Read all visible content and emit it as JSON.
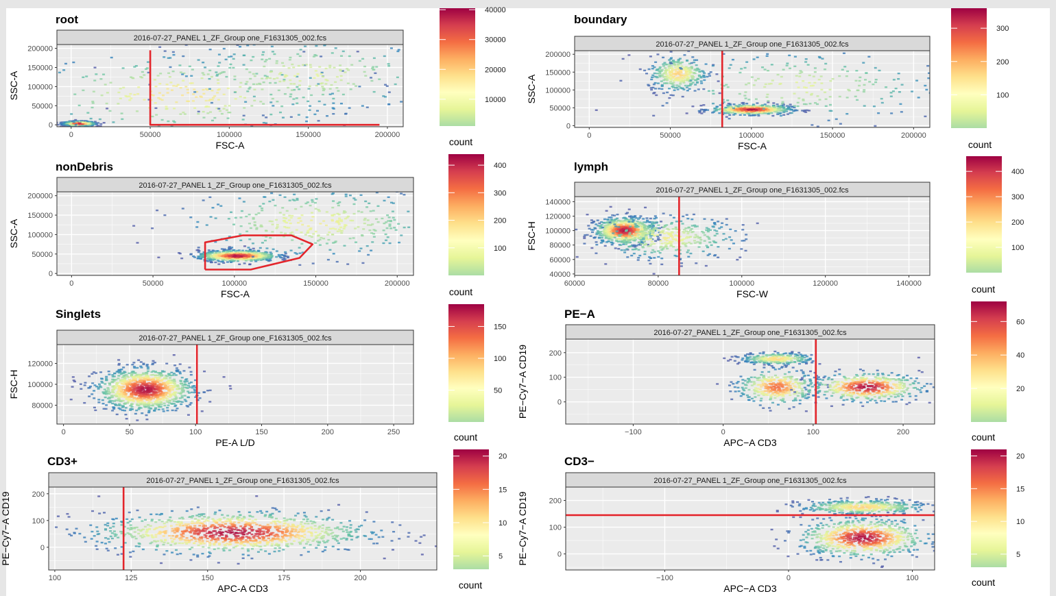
{
  "chart_data": [
    {
      "type": "scatter",
      "panel_name": "root",
      "title": "root",
      "strip": "2016-07-27_PANEL 1_ZF_Group one_F1631305_002.fcs",
      "xlabel": "FSC-A",
      "ylabel": "SSC-A",
      "xlim": [
        -9000,
        210000
      ],
      "ylim": [
        -5000,
        210000
      ],
      "xticks": [
        0,
        50000,
        100000,
        150000,
        200000
      ],
      "yticks": [
        0,
        50000,
        100000,
        150000,
        200000
      ],
      "density": [
        {
          "x": 5000,
          "y": 3000,
          "sx": 5000,
          "sy": 3000,
          "w": 1.0
        },
        {
          "x": 70000,
          "y": 80000,
          "sx": 55000,
          "sy": 55000,
          "w": 0.55
        },
        {
          "x": 150000,
          "y": 130000,
          "sx": 45000,
          "sy": 50000,
          "w": 0.45
        }
      ],
      "gates": [
        {
          "type": "polyline",
          "points": [
            [
              50000,
              195000
            ],
            [
              50000,
              0
            ],
            [
              195000,
              0
            ]
          ]
        }
      ],
      "legend": {
        "title": "count",
        "ticks": [
          10000,
          20000,
          30000,
          40000
        ],
        "min": 1000,
        "max": 40500
      }
    },
    {
      "type": "scatter",
      "panel_name": "boundary",
      "title": "boundary",
      "strip": "2016-07-27_PANEL 1_ZF_Group one_F1631305_002.fcs",
      "xlabel": "FSC-A",
      "ylabel": "SSC-A",
      "xlim": [
        -9000,
        210000
      ],
      "ylim": [
        -5000,
        210000
      ],
      "xticks": [
        0,
        50000,
        100000,
        150000,
        200000
      ],
      "yticks": [
        0,
        50000,
        100000,
        150000,
        200000
      ],
      "density": [
        {
          "x": 100000,
          "y": 45000,
          "sx": 12000,
          "sy": 7000,
          "w": 1.0
        },
        {
          "x": 55000,
          "y": 145000,
          "sx": 9000,
          "sy": 25000,
          "w": 0.6
        },
        {
          "x": 130000,
          "y": 110000,
          "sx": 45000,
          "sy": 50000,
          "w": 0.45
        }
      ],
      "gates": [
        {
          "type": "vline",
          "x": 82000
        }
      ],
      "legend": {
        "title": "count",
        "ticks": [
          100,
          200,
          300
        ],
        "min": 0,
        "max": 360
      }
    },
    {
      "type": "scatter",
      "panel_name": "nonDebris",
      "title": "nonDebris",
      "strip": "2016-07-27_PANEL 1_ZF_Group one_F1631305_002.fcs",
      "xlabel": "FSC-A",
      "ylabel": "SSC-A",
      "xlim": [
        -9000,
        210000
      ],
      "ylim": [
        -5000,
        210000
      ],
      "xticks": [
        0,
        50000,
        100000,
        150000,
        200000
      ],
      "yticks": [
        0,
        50000,
        100000,
        150000,
        200000
      ],
      "density": [
        {
          "x": 102000,
          "y": 45000,
          "sx": 12000,
          "sy": 7000,
          "w": 1.0
        },
        {
          "x": 150000,
          "y": 130000,
          "sx": 40000,
          "sy": 45000,
          "w": 0.5
        }
      ],
      "gates": [
        {
          "type": "polyline",
          "points": [
            [
              82000,
              10000
            ],
            [
              82000,
              80000
            ],
            [
              105000,
              98000
            ],
            [
              135000,
              98000
            ],
            [
              148000,
              75000
            ],
            [
              140000,
              40000
            ],
            [
              120000,
              20000
            ],
            [
              110000,
              10000
            ],
            [
              82000,
              10000
            ]
          ]
        }
      ],
      "legend": {
        "title": "count",
        "ticks": [
          100,
          200,
          300,
          400
        ],
        "min": 0,
        "max": 440
      }
    },
    {
      "type": "scatter",
      "panel_name": "lymph",
      "title": "lymph",
      "strip": "2016-07-27_PANEL 1_ZF_Group one_F1631305_002.fcs",
      "xlabel": "FSC-W",
      "ylabel": "FSC-H",
      "xlim": [
        60000,
        145000
      ],
      "ylim": [
        38000,
        147000
      ],
      "xticks": [
        60000,
        80000,
        100000,
        120000,
        140000
      ],
      "yticks": [
        40000,
        60000,
        80000,
        100000,
        120000,
        140000
      ],
      "density": [
        {
          "x": 72000,
          "y": 100000,
          "sx": 3500,
          "sy": 9000,
          "w": 1.0
        },
        {
          "x": 82000,
          "y": 90000,
          "sx": 9000,
          "sy": 15000,
          "w": 0.5
        }
      ],
      "gates": [
        {
          "type": "vline",
          "x": 85000
        }
      ],
      "legend": {
        "title": "count",
        "ticks": [
          100,
          200,
          300,
          400
        ],
        "min": 0,
        "max": 460
      }
    },
    {
      "type": "scatter",
      "panel_name": "Singlets",
      "title": "Singlets",
      "strip": "2016-07-27_PANEL 1_ZF_Group one_F1631305_002.fcs",
      "xlabel": "PE-A L/D",
      "ylabel": "FSC-H",
      "xlim": [
        -5,
        265
      ],
      "ylim": [
        62000,
        138000
      ],
      "xticks": [
        0,
        50,
        100,
        150,
        200,
        250
      ],
      "yticks": [
        80000,
        100000,
        120000
      ],
      "density": [
        {
          "x": 62,
          "y": 95000,
          "sx": 18,
          "sy": 10000,
          "w": 1.0
        }
      ],
      "gates": [
        {
          "type": "vline",
          "x": 101
        }
      ],
      "legend": {
        "title": "count",
        "ticks": [
          50,
          100,
          150
        ],
        "min": 0,
        "max": 185
      }
    },
    {
      "type": "scatter",
      "panel_name": "PE-A",
      "title": "PE−A",
      "strip": "2016-07-27_PANEL 1_ZF_Group one_F1631305_002.fcs",
      "xlabel": "APC−A CD3",
      "ylabel": "PE−Cy7−A CD19",
      "xlim": [
        -175,
        235
      ],
      "ylim": [
        -90,
        255
      ],
      "xticks": [
        -100,
        0,
        100,
        200
      ],
      "yticks": [
        0,
        100,
        200
      ],
      "density": [
        {
          "x": 60,
          "y": 60,
          "sx": 22,
          "sy": 35,
          "w": 0.8
        },
        {
          "x": 160,
          "y": 60,
          "sx": 30,
          "sy": 28,
          "w": 1.0
        },
        {
          "x": 60,
          "y": 175,
          "sx": 20,
          "sy": 12,
          "w": 0.6
        }
      ],
      "gates": [
        {
          "type": "vline",
          "x": 103
        }
      ],
      "legend": {
        "title": "count",
        "ticks": [
          20,
          40,
          60
        ],
        "min": 0,
        "max": 72
      }
    },
    {
      "type": "scatter",
      "panel_name": "CD3+",
      "title": "CD3+",
      "strip": "2016-07-27_PANEL 1_ZF_Group one_F1631305_002.fcs",
      "xlabel": "APC-A CD3",
      "ylabel": "PE−Cy7−A CD19",
      "xlim": [
        98,
        225
      ],
      "ylim": [
        -85,
        225
      ],
      "xticks": [
        100,
        125,
        150,
        175,
        200
      ],
      "yticks": [
        0,
        100,
        200
      ],
      "density": [
        {
          "x": 158,
          "y": 55,
          "sx": 22,
          "sy": 38,
          "w": 1.0
        }
      ],
      "gates": [
        {
          "type": "vline",
          "x": 122.5
        }
      ],
      "legend": {
        "title": "count",
        "ticks": [
          5,
          10,
          15,
          20
        ],
        "min": 3,
        "max": 21
      }
    },
    {
      "type": "scatter",
      "panel_name": "CD3-",
      "title": "CD3−",
      "strip": "2016-07-27_PANEL 1_ZF_Group one_F1631305_002.fcs",
      "xlabel": "APC−A CD3",
      "ylabel": "PE−Cy7−A CD19",
      "xlim": [
        -180,
        118
      ],
      "ylim": [
        -60,
        250
      ],
      "xticks": [
        -100,
        0,
        100
      ],
      "yticks": [
        0,
        100,
        200
      ],
      "density": [
        {
          "x": 60,
          "y": 60,
          "sx": 25,
          "sy": 35,
          "w": 1.0
        },
        {
          "x": 60,
          "y": 175,
          "sx": 25,
          "sy": 14,
          "w": 0.6
        }
      ],
      "gates": [
        {
          "type": "hline",
          "y": 145
        }
      ],
      "legend": {
        "title": "count",
        "ticks": [
          5,
          10,
          15,
          20
        ],
        "min": 3,
        "max": 21
      }
    }
  ],
  "colors": {
    "gate": "#e3252b",
    "strip_bg": "#d9d9d9",
    "panel_bg": "#ebebeb",
    "grid": "#ffffff",
    "spectral_scale": [
      "#abdda4",
      "#e6f598",
      "#ffffbf",
      "#fee08b",
      "#fdae61",
      "#f46d43",
      "#d53e4f",
      "#9e0142"
    ],
    "low_density": "#5e4fa2"
  }
}
